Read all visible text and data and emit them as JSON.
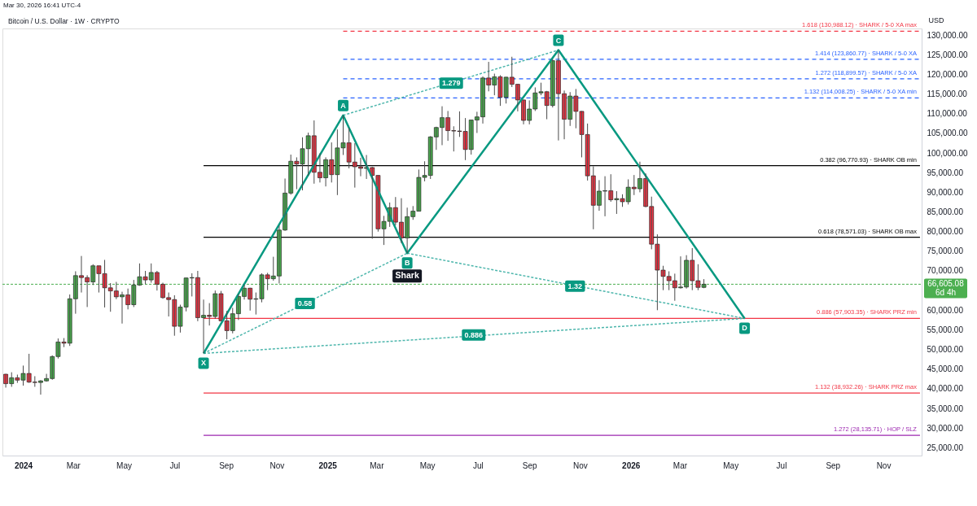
{
  "chart_data": {
    "type": "candlestick",
    "title": "Bitcoin / U.S. Dollar · 1W · CRYPTO",
    "ylabel": "USD",
    "x": [
      "2023-12-11",
      "2023-12-18",
      "2023-12-25",
      "2024-01-01",
      "2024-01-08",
      "2024-01-15",
      "2024-01-22",
      "2024-01-29",
      "2024-02-05",
      "2024-02-12",
      "2024-02-19",
      "2024-02-26",
      "2024-03-04",
      "2024-03-11",
      "2024-03-18",
      "2024-03-25",
      "2024-04-01",
      "2024-04-08",
      "2024-04-15",
      "2024-04-22",
      "2024-04-29",
      "2024-05-06",
      "2024-05-13",
      "2024-05-20",
      "2024-05-27",
      "2024-06-03",
      "2024-06-10",
      "2024-06-17",
      "2024-06-24",
      "2024-07-01",
      "2024-07-08",
      "2024-07-15",
      "2024-07-22",
      "2024-07-29",
      "2024-08-05",
      "2024-08-12",
      "2024-08-19",
      "2024-08-26",
      "2024-09-02",
      "2024-09-09",
      "2024-09-16",
      "2024-09-23",
      "2024-09-30",
      "2024-10-07",
      "2024-10-14",
      "2024-10-21",
      "2024-10-28",
      "2024-11-04",
      "2024-11-11",
      "2024-11-18",
      "2024-11-25",
      "2024-12-02",
      "2024-12-09",
      "2024-12-16",
      "2024-12-23",
      "2024-12-30",
      "2025-01-06",
      "2025-01-13",
      "2025-01-20",
      "2025-01-27",
      "2025-02-03",
      "2025-02-10",
      "2025-02-17",
      "2025-02-24",
      "2025-03-03",
      "2025-03-10",
      "2025-03-17",
      "2025-03-24",
      "2025-03-31",
      "2025-04-07",
      "2025-04-14",
      "2025-04-21",
      "2025-04-28",
      "2025-05-05",
      "2025-05-12",
      "2025-05-19",
      "2025-05-26",
      "2025-06-02",
      "2025-06-09",
      "2025-06-16",
      "2025-06-23",
      "2025-06-30",
      "2025-07-07",
      "2025-07-14",
      "2025-07-21",
      "2025-07-28",
      "2025-08-04",
      "2025-08-11",
      "2025-08-18",
      "2025-08-25",
      "2025-09-01",
      "2025-09-08",
      "2025-09-15",
      "2025-09-22",
      "2025-09-29",
      "2025-10-06",
      "2025-10-13",
      "2025-10-20",
      "2025-10-27",
      "2025-11-03",
      "2025-11-10",
      "2025-11-17",
      "2025-11-24",
      "2025-12-01",
      "2025-12-08",
      "2025-12-15",
      "2025-12-22",
      "2025-12-29",
      "2026-01-05",
      "2026-01-12",
      "2026-01-19",
      "2026-01-26",
      "2026-02-02",
      "2026-02-09",
      "2026-02-16",
      "2026-02-23",
      "2026-03-02",
      "2026-03-09",
      "2026-03-16",
      "2026-03-23",
      "2026-03-30"
    ],
    "ohlc": [
      [
        43700,
        43800,
        40300,
        41300
      ],
      [
        41300,
        44200,
        40500,
        42800
      ],
      [
        42800,
        43600,
        41500,
        42200
      ],
      [
        42200,
        45900,
        40800,
        43900
      ],
      [
        43900,
        48900,
        41500,
        41700
      ],
      [
        41700,
        43200,
        40500,
        41600
      ],
      [
        41600,
        42200,
        38500,
        42000
      ],
      [
        42000,
        43800,
        41800,
        42600
      ],
      [
        42600,
        48500,
        42300,
        48200
      ],
      [
        48200,
        52800,
        47700,
        51900
      ],
      [
        51900,
        52900,
        50600,
        51600
      ],
      [
        51600,
        64000,
        50900,
        62900
      ],
      [
        62900,
        69900,
        59100,
        68800
      ],
      [
        68800,
        73800,
        64500,
        68300
      ],
      [
        68300,
        68900,
        60800,
        67200
      ],
      [
        67200,
        71700,
        66400,
        71300
      ],
      [
        71300,
        71300,
        64500,
        69300
      ],
      [
        69300,
        72800,
        60700,
        65700
      ],
      [
        65700,
        66900,
        59600,
        64900
      ],
      [
        64900,
        67200,
        62800,
        63400
      ],
      [
        63400,
        64700,
        56600,
        63900
      ],
      [
        63900,
        65500,
        60200,
        61400
      ],
      [
        61400,
        67700,
        60800,
        66400
      ],
      [
        66400,
        71900,
        66200,
        68500
      ],
      [
        68500,
        70000,
        66600,
        67700
      ],
      [
        67700,
        71900,
        67000,
        69600
      ],
      [
        69600,
        70000,
        65000,
        66600
      ],
      [
        66600,
        67000,
        62900,
        63200
      ],
      [
        63200,
        64500,
        58400,
        62700
      ],
      [
        62700,
        63800,
        53500,
        55900
      ],
      [
        55900,
        61400,
        54300,
        60800
      ],
      [
        60800,
        68300,
        59700,
        68200
      ],
      [
        68200,
        69400,
        63500,
        68300
      ],
      [
        68300,
        70000,
        57200,
        58100
      ],
      [
        58100,
        62700,
        49000,
        58700
      ],
      [
        58700,
        61800,
        56100,
        58400
      ],
      [
        58400,
        65000,
        57800,
        64200
      ],
      [
        64200,
        64900,
        57200,
        57300
      ],
      [
        57300,
        59800,
        52600,
        54800
      ],
      [
        54800,
        60600,
        54100,
        59100
      ],
      [
        59100,
        64100,
        57500,
        63500
      ],
      [
        63500,
        66500,
        62700,
        65600
      ],
      [
        65600,
        65700,
        59900,
        62800
      ],
      [
        62800,
        64500,
        58900,
        62900
      ],
      [
        62900,
        69400,
        62000,
        69000
      ],
      [
        69000,
        69500,
        65100,
        68000
      ],
      [
        68000,
        73600,
        67500,
        68700
      ],
      [
        68700,
        81500,
        66800,
        80400
      ],
      [
        80400,
        93500,
        80200,
        89800
      ],
      [
        89800,
        99600,
        89400,
        97900
      ],
      [
        97900,
        98900,
        90800,
        97200
      ],
      [
        97200,
        104000,
        90500,
        101100
      ],
      [
        101100,
        105200,
        94200,
        104400
      ],
      [
        104400,
        108300,
        92200,
        95100
      ],
      [
        95100,
        99900,
        92500,
        93700
      ],
      [
        93700,
        98900,
        91500,
        98300
      ],
      [
        98300,
        102700,
        92500,
        94500
      ],
      [
        94500,
        106000,
        89300,
        101300
      ],
      [
        101300,
        109600,
        99500,
        102600
      ],
      [
        102600,
        106400,
        96100,
        97700
      ],
      [
        97700,
        102500,
        91200,
        96500
      ],
      [
        96500,
        98800,
        94100,
        96100
      ],
      [
        96100,
        99500,
        93400,
        96300
      ],
      [
        96300,
        96500,
        78200,
        94300
      ],
      [
        94300,
        94400,
        80000,
        80700
      ],
      [
        80700,
        84000,
        76600,
        82600
      ],
      [
        82600,
        87400,
        81200,
        86100
      ],
      [
        86100,
        88800,
        81600,
        82400
      ],
      [
        82400,
        88500,
        77100,
        78400
      ],
      [
        78400,
        86100,
        74500,
        83800
      ],
      [
        83800,
        86500,
        83000,
        85200
      ],
      [
        85200,
        95800,
        85100,
        93800
      ],
      [
        93800,
        97900,
        92800,
        94300
      ],
      [
        94300,
        104300,
        93400,
        104100
      ],
      [
        104100,
        106700,
        100800,
        106500
      ],
      [
        106500,
        111900,
        102000,
        109000
      ],
      [
        109000,
        110700,
        103100,
        105700
      ],
      [
        105700,
        106800,
        100400,
        105600
      ],
      [
        105600,
        110600,
        104100,
        105500
      ],
      [
        105500,
        108900,
        98200,
        100900
      ],
      [
        100900,
        108500,
        99600,
        108400
      ],
      [
        108400,
        110500,
        105100,
        109200
      ],
      [
        109200,
        119500,
        107500,
        119100
      ],
      [
        119100,
        123200,
        115700,
        117300
      ],
      [
        117300,
        120200,
        114700,
        119400
      ],
      [
        119400,
        119800,
        112000,
        114200
      ],
      [
        114200,
        119400,
        112600,
        119300
      ],
      [
        119300,
        124500,
        116800,
        117500
      ],
      [
        117500,
        117600,
        110600,
        113500
      ],
      [
        113500,
        113600,
        107300,
        108300
      ],
      [
        108300,
        113400,
        107300,
        111200
      ],
      [
        111200,
        116700,
        110700,
        115300
      ],
      [
        115300,
        117900,
        114700,
        115600
      ],
      [
        115600,
        115800,
        108600,
        112100
      ],
      [
        112100,
        123900,
        111600,
        123500
      ],
      [
        123500,
        126200,
        103200,
        115100
      ],
      [
        115100,
        115900,
        103500,
        108600
      ],
      [
        108600,
        115500,
        106900,
        114500
      ],
      [
        114500,
        116300,
        106300,
        110600
      ],
      [
        110600,
        110700,
        98900,
        104700
      ],
      [
        104700,
        107500,
        93000,
        94200
      ],
      [
        94200,
        96600,
        80600,
        86700
      ],
      [
        86700,
        93100,
        85300,
        90300
      ],
      [
        90300,
        94100,
        83900,
        90400
      ],
      [
        90400,
        94600,
        87600,
        88100
      ],
      [
        88100,
        90300,
        84500,
        88400
      ],
      [
        88400,
        89500,
        86300,
        87600
      ],
      [
        87600,
        93300,
        86900,
        91300
      ],
      [
        91300,
        94400,
        89300,
        90900
      ],
      [
        90900,
        97800,
        90000,
        93500
      ],
      [
        93500,
        94800,
        86200,
        86400
      ],
      [
        86400,
        88900,
        75500,
        76800
      ],
      [
        76800,
        79300,
        60000,
        70200
      ],
      [
        70200,
        71300,
        65100,
        68600
      ],
      [
        68600,
        69900,
        65100,
        67500
      ],
      [
        67500,
        69300,
        62400,
        65700
      ],
      [
        65700,
        73700,
        65500,
        65900
      ],
      [
        65900,
        74000,
        65500,
        72700
      ],
      [
        72700,
        75800,
        65100,
        67500
      ],
      [
        67500,
        71700,
        65100,
        65800
      ],
      [
        65800,
        67900,
        65600,
        66605.08
      ]
    ],
    "colors": [
      "#f23645",
      "#4caf50",
      "#f23645",
      "#4caf50",
      "#f23645",
      "#f23645",
      "#4caf50",
      "#4caf50",
      "#4caf50",
      "#4caf50",
      "#f23645",
      "#4caf50",
      "#4caf50",
      "#f23645",
      "#f23645",
      "#4caf50",
      "#f23645",
      "#f23645",
      "#f23645",
      "#f23645",
      "#4caf50",
      "#f23645",
      "#4caf50",
      "#4caf50",
      "#f23645",
      "#4caf50",
      "#f23645",
      "#f23645",
      "#f23645",
      "#f23645",
      "#4caf50",
      "#4caf50",
      "#4caf50",
      "#f23645",
      "#4caf50",
      "#f23645",
      "#4caf50",
      "#f23645",
      "#f23645",
      "#4caf50",
      "#4caf50",
      "#4caf50",
      "#f23645",
      "#4caf50",
      "#4caf50",
      "#f23645",
      "#4caf50",
      "#4caf50",
      "#4caf50",
      "#4caf50",
      "#f23645",
      "#4caf50",
      "#4caf50",
      "#f23645",
      "#f23645",
      "#4caf50",
      "#f23645",
      "#4caf50",
      "#4caf50",
      "#f23645",
      "#f23645",
      "#f23645",
      "#4caf50",
      "#f23645",
      "#f23645",
      "#4caf50",
      "#4caf50",
      "#f23645",
      "#f23645",
      "#4caf50",
      "#4caf50",
      "#4caf50",
      "#4caf50",
      "#4caf50",
      "#4caf50",
      "#4caf50",
      "#f23645",
      "#f23645",
      "#f23645",
      "#f23645",
      "#4caf50",
      "#4caf50",
      "#4caf50",
      "#f23645",
      "#4caf50",
      "#f23645",
      "#4caf50",
      "#f23645",
      "#f23645",
      "#f23645",
      "#4caf50",
      "#4caf50",
      "#4caf50",
      "#f23645",
      "#4caf50",
      "#f23645",
      "#f23645",
      "#4caf50",
      "#f23645",
      "#f23645",
      "#f23645",
      "#f23645",
      "#4caf50",
      "#4caf50",
      "#f23645",
      "#4caf50",
      "#f23645",
      "#4caf50",
      "#f23645",
      "#4caf50",
      "#f23645",
      "#f23645",
      "#f23645",
      "#f23645",
      "#f23645",
      "#f23645",
      "#4caf50",
      "#4caf50",
      "#f23645",
      "#f23645",
      "#4caf50"
    ],
    "xlim": [
      "2023-12-07",
      "2026-12-17"
    ],
    "xticks": [
      {
        "value": "2024-01",
        "label": "2024"
      },
      {
        "value": "2024-03",
        "label": "Mar"
      },
      {
        "value": "2024-05",
        "label": "May"
      },
      {
        "value": "2024-07",
        "label": "Jul"
      },
      {
        "value": "2024-09",
        "label": "Sep"
      },
      {
        "value": "2024-11",
        "label": "Nov"
      },
      {
        "value": "2025-01",
        "label": "2025"
      },
      {
        "value": "2025-03",
        "label": "Mar"
      },
      {
        "value": "2025-05",
        "label": "May"
      },
      {
        "value": "2025-07",
        "label": "Jul"
      },
      {
        "value": "2025-09",
        "label": "Sep"
      },
      {
        "value": "2025-11",
        "label": "Nov"
      },
      {
        "value": "2026-01",
        "label": "2026"
      },
      {
        "value": "2026-03",
        "label": "Mar"
      },
      {
        "value": "2026-05",
        "label": "May"
      },
      {
        "value": "2026-07",
        "label": "Jul"
      },
      {
        "value": "2026-09",
        "label": "Sep"
      },
      {
        "value": "2026-11",
        "label": "Nov"
      }
    ],
    "ylim": [
      23000,
      131700
    ],
    "yticks": [
      {
        "value": 25000,
        "label": "25,000.00"
      },
      {
        "value": 30000,
        "label": "30,000.00"
      },
      {
        "value": 35000,
        "label": "35,000.00"
      },
      {
        "value": 40000,
        "label": "40,000.00"
      },
      {
        "value": 45000,
        "label": "45,000.00"
      },
      {
        "value": 50000,
        "label": "50,000.00"
      },
      {
        "value": 55000,
        "label": "55,000.00"
      },
      {
        "value": 60000,
        "label": "60,000.00"
      },
      {
        "value": 70000,
        "label": "70,000.00"
      },
      {
        "value": 75000,
        "label": "75,000.00"
      },
      {
        "value": 80000,
        "label": "80,000.00"
      },
      {
        "value": 85000,
        "label": "85,000.00"
      },
      {
        "value": 90000,
        "label": "90,000.00"
      },
      {
        "value": 95000,
        "label": "95,000.00"
      },
      {
        "value": 100000,
        "label": "100,000.00"
      },
      {
        "value": 105000,
        "label": "105,000.00"
      },
      {
        "value": 110000,
        "label": "110,000.00"
      },
      {
        "value": 115000,
        "label": "115,000.00"
      },
      {
        "value": 120000,
        "label": "120,000.00"
      },
      {
        "value": 125000,
        "label": "125,000.00"
      },
      {
        "value": 130000,
        "label": "130,000.00"
      }
    ],
    "grid": false,
    "series": [
      {
        "type": "line",
        "color": "#4db6ac",
        "line_style": "dotted",
        "x": [
          "2024-08-05",
          "2025-04-07"
        ],
        "values": [
          49000,
          74500
        ]
      },
      {
        "type": "line",
        "color": "#4db6ac",
        "line_style": "dotted",
        "x": [
          "2025-01-20",
          "2025-10-06"
        ],
        "values": [
          109600,
          126200
        ]
      },
      {
        "type": "line",
        "color": "#4db6ac",
        "line_style": "dotted",
        "x": [
          "2025-04-07",
          "2026-05-18"
        ],
        "values": [
          74500,
          57903.35
        ]
      },
      {
        "type": "line",
        "color": "#4db6ac",
        "line_style": "dotted",
        "x": [
          "2024-08-05",
          "2026-05-18"
        ],
        "values": [
          49000,
          57903.35
        ]
      },
      {
        "name": "1.618 (130,988.12) · SHARK / 5-0 XA max",
        "type": "line",
        "color": "#f23645",
        "line_style": "dashed",
        "x": [
          "2025-01-20",
          "2026-12-15"
        ],
        "values": [
          130988.12,
          130988.12
        ]
      },
      {
        "name": "1.414 (123,860.77) · SHARK / 5-0 XA",
        "type": "line",
        "color": "#2962ff",
        "line_style": "dashed",
        "x": [
          "2025-01-20",
          "2026-12-15"
        ],
        "values": [
          123860.77,
          123860.77
        ]
      },
      {
        "name": "1.272 (118,899.57) · SHARK / 5-0 XA",
        "type": "line",
        "color": "#2962ff",
        "line_style": "dashed",
        "x": [
          "2025-01-20",
          "2026-12-15"
        ],
        "values": [
          118899.57,
          118899.57
        ]
      },
      {
        "name": "1.132 (114,008.25) · SHARK / 5-0 XA min",
        "type": "line",
        "color": "#2962ff",
        "line_style": "dashed",
        "x": [
          "2025-01-20",
          "2026-12-15"
        ],
        "values": [
          114008.25,
          114008.25
        ]
      },
      {
        "name": "0.382 (96,770.93) · SHARK OB min",
        "type": "line",
        "color": "#000000",
        "line_style": "solid",
        "x": [
          "2024-08-05",
          "2026-12-15"
        ],
        "values": [
          96770.93,
          96770.93
        ]
      },
      {
        "name": "0.618 (78,571.03) · SHARK OB max",
        "type": "line",
        "color": "#000000",
        "line_style": "solid",
        "x": [
          "2024-08-05",
          "2026-12-15"
        ],
        "values": [
          78571.03,
          78571.03
        ]
      },
      {
        "name": "0.886 (57,903.35) · SHARK PRZ min",
        "type": "line",
        "color": "#f23645",
        "line_style": "solid",
        "x": [
          "2024-08-05",
          "2026-12-15"
        ],
        "values": [
          57903.35,
          57903.35
        ]
      },
      {
        "name": "1.132 (38,932.26) · SHARK PRZ max",
        "type": "line",
        "color": "#f23645",
        "line_style": "solid",
        "x": [
          "2024-08-05",
          "2026-12-15"
        ],
        "values": [
          38932.26,
          38932.26
        ]
      },
      {
        "name": "1.272 (28,135.71) · HOP / SLZ",
        "type": "line",
        "color": "#9c27b0",
        "line_style": "solid",
        "x": [
          "2024-08-05",
          "2026-12-15"
        ],
        "values": [
          28135.71,
          28135.71
        ]
      },
      {
        "name": "Shark",
        "type": "line",
        "color": "#089981",
        "line_style": "solid",
        "x": [
          "2024-08-05",
          "2025-01-20",
          "2025-04-07",
          "2025-10-06",
          "2026-05-18"
        ],
        "values": [
          49000,
          109600,
          74500,
          126200,
          57903.35
        ]
      }
    ],
    "ref_lines": [
      {
        "axis": "y",
        "value": 66605.08,
        "label": "66,605.08\n6d 4h",
        "color": "#4caf50",
        "line_style": "dotted"
      }
    ],
    "annotations": [
      "Mar 30, 2026 16:41 UTC-4",
      {
        "text": "X",
        "x": "2024-08-05",
        "y": 49000
      },
      {
        "text": "A",
        "x": "2025-01-20",
        "y": 109600
      },
      {
        "text": "B",
        "x": "2025-04-07",
        "y": 74500
      },
      {
        "text": "C",
        "x": "2025-10-06",
        "y": 126200
      },
      {
        "text": "D",
        "x": "2026-05-18",
        "y": 57903.35
      },
      {
        "text": "0.58",
        "x": "2024-12-05",
        "y": 61700
      },
      {
        "text": "1.279",
        "x": "2025-05-30",
        "y": 117800
      },
      {
        "text": "1.32",
        "x": "2025-10-26",
        "y": 66100
      },
      {
        "text": "0.886",
        "x": "2025-06-26",
        "y": 53700
      }
    ]
  }
}
